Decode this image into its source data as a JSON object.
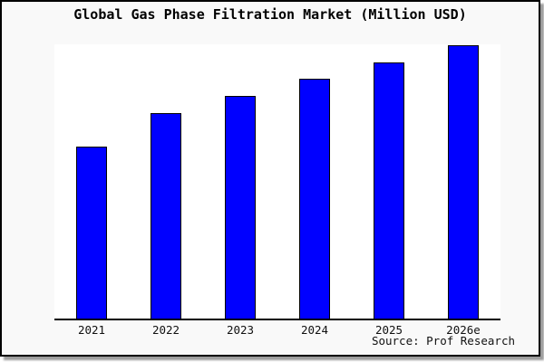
{
  "title": "Global Gas Phase Filtration Market (Million USD)",
  "source": "Source: Prof Research",
  "colors": {
    "page_background": "#f9f9f9",
    "plot_background": "#ffffff",
    "bar_fill": "#0000ff",
    "bar_border": "#000000",
    "axis": "#000000",
    "card_border": "#000000",
    "shadow": "#9c9c9c"
  },
  "chart_data": {
    "type": "bar",
    "title": "Global Gas Phase Filtration Market (Million USD)",
    "categories": [
      "2021",
      "2022",
      "2023",
      "2024",
      "2025",
      "2026e"
    ],
    "values": [
      190,
      227,
      246,
      265,
      283,
      302
    ],
    "values_note": "y-axis has no tick labels; values are relative bar heights (pixels) read from the plot",
    "xlabel": "",
    "ylabel": "",
    "ylim": [
      0,
      303
    ],
    "grid": false,
    "legend": false,
    "bar_color": "#0000ff",
    "bar_border_color": "#000000"
  }
}
